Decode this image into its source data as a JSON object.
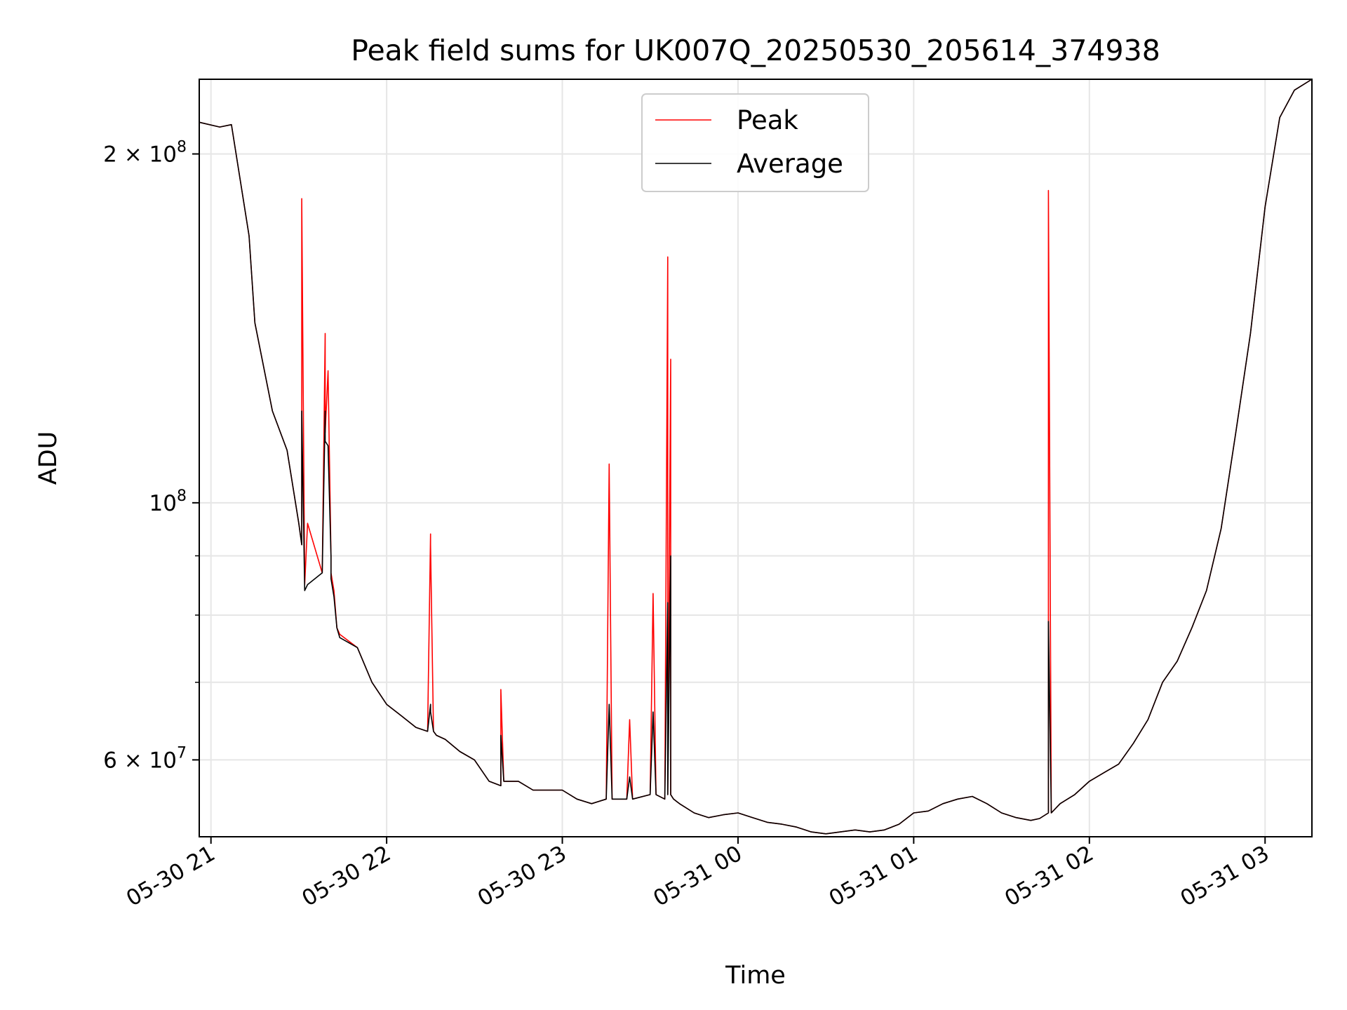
{
  "chart_data": {
    "type": "line",
    "title": "Peak field sums for UK007Q_20250530_205614_374938",
    "xlabel": "Time",
    "ylabel": "ADU",
    "yscale": "log",
    "ylim": [
      51500000,
      232000000
    ],
    "xlim": [
      "2025-05-30 20:56",
      "2025-05-31 03:16"
    ],
    "grid": true,
    "legend_position": "upper center",
    "x_ticks": [
      {
        "label": "05-30 21",
        "value": "2025-05-30 21:00"
      },
      {
        "label": "05-30 22",
        "value": "2025-05-30 22:00"
      },
      {
        "label": "05-30 23",
        "value": "2025-05-30 23:00"
      },
      {
        "label": "05-31 00",
        "value": "2025-05-31 00:00"
      },
      {
        "label": "05-31 01",
        "value": "2025-05-31 01:00"
      },
      {
        "label": "05-31 02",
        "value": "2025-05-31 02:00"
      },
      {
        "label": "05-31 03",
        "value": "2025-05-31 03:00"
      }
    ],
    "y_ticks_major": [
      {
        "value": 60000000,
        "base": "6 × 10",
        "exp": "7"
      },
      {
        "value": 100000000,
        "base": "10",
        "exp": "8"
      },
      {
        "value": 200000000,
        "base": "2 × 10",
        "exp": "8"
      }
    ],
    "y_ticks_minor": [
      70000000,
      80000000,
      90000000
    ],
    "series": [
      {
        "name": "Peak",
        "color": "#ff0000",
        "x": [
          "2025-05-30 20:56",
          "2025-05-30 21:03",
          "2025-05-30 21:07",
          "2025-05-30 21:13",
          "2025-05-30 21:15",
          "2025-05-30 21:21",
          "2025-05-30 21:26",
          "2025-05-30 21:30",
          "2025-05-30 21:31",
          "2025-05-30 21:31",
          "2025-05-30 21:32",
          "2025-05-30 21:33",
          "2025-05-30 21:38",
          "2025-05-30 21:39",
          "2025-05-30 21:39",
          "2025-05-30 21:40",
          "2025-05-30 21:41",
          "2025-05-30 21:41",
          "2025-05-30 21:42",
          "2025-05-30 21:43",
          "2025-05-30 21:44",
          "2025-05-30 21:50",
          "2025-05-30 21:55",
          "2025-05-30 22:00",
          "2025-05-30 22:05",
          "2025-05-30 22:10",
          "2025-05-30 22:14",
          "2025-05-30 22:15",
          "2025-05-30 22:15",
          "2025-05-30 22:16",
          "2025-05-30 22:17",
          "2025-05-30 22:20",
          "2025-05-30 22:25",
          "2025-05-30 22:30",
          "2025-05-30 22:35",
          "2025-05-30 22:39",
          "2025-05-30 22:39",
          "2025-05-30 22:40",
          "2025-05-30 22:45",
          "2025-05-30 22:50",
          "2025-05-30 22:55",
          "2025-05-30 23:00",
          "2025-05-30 23:05",
          "2025-05-30 23:10",
          "2025-05-30 23:15",
          "2025-05-30 23:16",
          "2025-05-30 23:17",
          "2025-05-30 23:22",
          "2025-05-30 23:23",
          "2025-05-30 23:24",
          "2025-05-30 23:30",
          "2025-05-30 23:31",
          "2025-05-30 23:32",
          "2025-05-30 23:35",
          "2025-05-30 23:36",
          "2025-05-30 23:36",
          "2025-05-30 23:37",
          "2025-05-30 23:37",
          "2025-05-30 23:38",
          "2025-05-30 23:40",
          "2025-05-30 23:45",
          "2025-05-30 23:50",
          "2025-05-30 23:55",
          "2025-05-31 00:00",
          "2025-05-31 00:05",
          "2025-05-31 00:10",
          "2025-05-31 00:15",
          "2025-05-31 00:20",
          "2025-05-31 00:25",
          "2025-05-31 00:30",
          "2025-05-31 00:35",
          "2025-05-31 00:40",
          "2025-05-31 00:45",
          "2025-05-31 00:50",
          "2025-05-31 00:55",
          "2025-05-31 01:00",
          "2025-05-31 01:05",
          "2025-05-31 01:10",
          "2025-05-31 01:15",
          "2025-05-31 01:20",
          "2025-05-31 01:25",
          "2025-05-31 01:30",
          "2025-05-31 01:35",
          "2025-05-31 01:40",
          "2025-05-31 01:43",
          "2025-05-31 01:46",
          "2025-05-31 01:46",
          "2025-05-31 01:47",
          "2025-05-31 01:50",
          "2025-05-31 01:55",
          "2025-05-31 02:00",
          "2025-05-31 02:05",
          "2025-05-31 02:10",
          "2025-05-31 02:15",
          "2025-05-31 02:20",
          "2025-05-31 02:25",
          "2025-05-31 02:30",
          "2025-05-31 02:35",
          "2025-05-31 02:40",
          "2025-05-31 02:45",
          "2025-05-31 02:50",
          "2025-05-31 02:55",
          "2025-05-31 03:00",
          "2025-05-31 03:05",
          "2025-05-31 03:10",
          "2025-05-31 03:16"
        ],
        "values": [
          213000000,
          211000000,
          212000000,
          170000000,
          143000000,
          120000000,
          111000000,
          96000000,
          92000000,
          183000000,
          85000000,
          96000000,
          87000000,
          140000000,
          115000000,
          130000000,
          90000000,
          87000000,
          84000000,
          78000000,
          77000000,
          75000000,
          70000000,
          67000000,
          65500000,
          64000000,
          63500000,
          94000000,
          92000000,
          63500000,
          63000000,
          62500000,
          61000000,
          60000000,
          57500000,
          57000000,
          69000000,
          57500000,
          57500000,
          56500000,
          56500000,
          56500000,
          55500000,
          55000000,
          55500000,
          108000000,
          55500000,
          55500000,
          65000000,
          55500000,
          56000000,
          83500000,
          56000000,
          55500000,
          163000000,
          56000000,
          133000000,
          56000000,
          55500000,
          55000000,
          54000000,
          53500000,
          53800000,
          54000000,
          53500000,
          53000000,
          52800000,
          52500000,
          52000000,
          51800000,
          52000000,
          52200000,
          52000000,
          52200000,
          52800000,
          54000000,
          54200000,
          55000000,
          55500000,
          55800000,
          55000000,
          54000000,
          53500000,
          53200000,
          53400000,
          54000000,
          186000000,
          54000000,
          55000000,
          56000000,
          57500000,
          58500000,
          59500000,
          62000000,
          65000000,
          70000000,
          73000000,
          78000000,
          84000000,
          95000000,
          115000000,
          140000000,
          180000000,
          215000000,
          227000000,
          232000000
        ]
      },
      {
        "name": "Average",
        "color": "#000000",
        "x": [
          "2025-05-30 20:56",
          "2025-05-30 21:03",
          "2025-05-30 21:07",
          "2025-05-30 21:13",
          "2025-05-30 21:15",
          "2025-05-30 21:21",
          "2025-05-30 21:26",
          "2025-05-30 21:30",
          "2025-05-30 21:31",
          "2025-05-30 21:31",
          "2025-05-30 21:32",
          "2025-05-30 21:33",
          "2025-05-30 21:38",
          "2025-05-30 21:39",
          "2025-05-30 21:39",
          "2025-05-30 21:40",
          "2025-05-30 21:41",
          "2025-05-30 21:41",
          "2025-05-30 21:42",
          "2025-05-30 21:43",
          "2025-05-30 21:44",
          "2025-05-30 21:50",
          "2025-05-30 21:55",
          "2025-05-30 22:00",
          "2025-05-30 22:05",
          "2025-05-30 22:10",
          "2025-05-30 22:14",
          "2025-05-30 22:15",
          "2025-05-30 22:15",
          "2025-05-30 22:16",
          "2025-05-30 22:17",
          "2025-05-30 22:20",
          "2025-05-30 22:25",
          "2025-05-30 22:30",
          "2025-05-30 22:35",
          "2025-05-30 22:39",
          "2025-05-30 22:39",
          "2025-05-30 22:40",
          "2025-05-30 22:45",
          "2025-05-30 22:50",
          "2025-05-30 22:55",
          "2025-05-30 23:00",
          "2025-05-30 23:05",
          "2025-05-30 23:10",
          "2025-05-30 23:15",
          "2025-05-30 23:16",
          "2025-05-30 23:17",
          "2025-05-30 23:22",
          "2025-05-30 23:23",
          "2025-05-30 23:24",
          "2025-05-30 23:30",
          "2025-05-30 23:31",
          "2025-05-30 23:32",
          "2025-05-30 23:35",
          "2025-05-30 23:36",
          "2025-05-30 23:36",
          "2025-05-30 23:37",
          "2025-05-30 23:37",
          "2025-05-30 23:38",
          "2025-05-30 23:40",
          "2025-05-30 23:45",
          "2025-05-30 23:50",
          "2025-05-30 23:55",
          "2025-05-31 00:00",
          "2025-05-31 00:05",
          "2025-05-31 00:10",
          "2025-05-31 00:15",
          "2025-05-31 00:20",
          "2025-05-31 00:25",
          "2025-05-31 00:30",
          "2025-05-31 00:35",
          "2025-05-31 00:40",
          "2025-05-31 00:45",
          "2025-05-31 00:50",
          "2025-05-31 00:55",
          "2025-05-31 01:00",
          "2025-05-31 01:05",
          "2025-05-31 01:10",
          "2025-05-31 01:15",
          "2025-05-31 01:20",
          "2025-05-31 01:25",
          "2025-05-31 01:30",
          "2025-05-31 01:35",
          "2025-05-31 01:40",
          "2025-05-31 01:43",
          "2025-05-31 01:46",
          "2025-05-31 01:46",
          "2025-05-31 01:47",
          "2025-05-31 01:50",
          "2025-05-31 01:55",
          "2025-05-31 02:00",
          "2025-05-31 02:05",
          "2025-05-31 02:10",
          "2025-05-31 02:15",
          "2025-05-31 02:20",
          "2025-05-31 02:25",
          "2025-05-31 02:30",
          "2025-05-31 02:35",
          "2025-05-31 02:40",
          "2025-05-31 02:45",
          "2025-05-31 02:50",
          "2025-05-31 02:55",
          "2025-05-31 03:00",
          "2025-05-31 03:05",
          "2025-05-31 03:10",
          "2025-05-31 03:16"
        ],
        "values": [
          213000000,
          211000000,
          212000000,
          170000000,
          143000000,
          120000000,
          111000000,
          96000000,
          92000000,
          120000000,
          84000000,
          85000000,
          87000000,
          120000000,
          113000000,
          112000000,
          90000000,
          86000000,
          83000000,
          78000000,
          76500000,
          75000000,
          70000000,
          67000000,
          65500000,
          64000000,
          63500000,
          67000000,
          66000000,
          63500000,
          63000000,
          62500000,
          61000000,
          60000000,
          57500000,
          57000000,
          63000000,
          57500000,
          57500000,
          56500000,
          56500000,
          56500000,
          55500000,
          55000000,
          55500000,
          67000000,
          55500000,
          55500000,
          58000000,
          55500000,
          56000000,
          66000000,
          56000000,
          55500000,
          82000000,
          56000000,
          90000000,
          56000000,
          55500000,
          55000000,
          54000000,
          53500000,
          53800000,
          54000000,
          53500000,
          53000000,
          52800000,
          52500000,
          52000000,
          51800000,
          52000000,
          52200000,
          52000000,
          52200000,
          52800000,
          54000000,
          54200000,
          55000000,
          55500000,
          55800000,
          55000000,
          54000000,
          53500000,
          53200000,
          53400000,
          54000000,
          79000000,
          54000000,
          55000000,
          56000000,
          57500000,
          58500000,
          59500000,
          62000000,
          65000000,
          70000000,
          73000000,
          78000000,
          84000000,
          95000000,
          115000000,
          140000000,
          180000000,
          215000000,
          227000000,
          232000000
        ]
      }
    ]
  }
}
